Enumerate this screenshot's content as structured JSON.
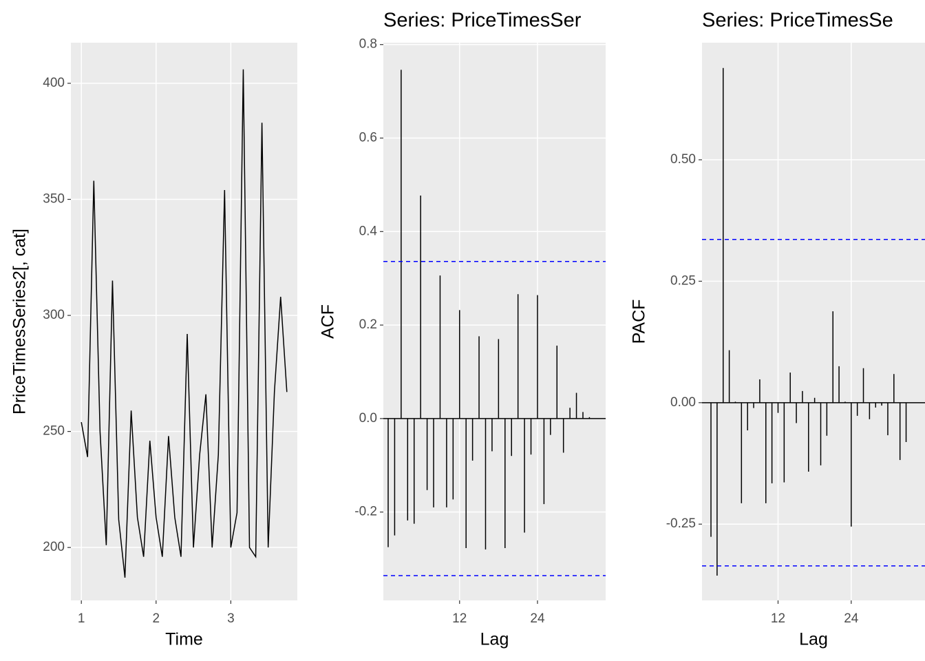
{
  "chart_data": [
    {
      "type": "line",
      "x_label": "Time",
      "y_label": "PriceTimesSeries2[, cat]",
      "x": [
        1,
        1.0833,
        1.1667,
        1.25,
        1.3333,
        1.4167,
        1.5,
        1.5833,
        1.6667,
        1.75,
        1.8333,
        1.9167,
        2,
        2.0833,
        2.1667,
        2.25,
        2.3333,
        2.4167,
        2.5,
        2.5833,
        2.6667,
        2.75,
        2.8333,
        2.9167,
        3,
        3.0833,
        3.1667,
        3.25,
        3.3333,
        3.4167,
        3.5,
        3.5833,
        3.6667,
        3.75
      ],
      "values": [
        254,
        239,
        358,
        250,
        201,
        315,
        212,
        187,
        259,
        213,
        196,
        246,
        213,
        196,
        248,
        213,
        196,
        292,
        200,
        240,
        266,
        200,
        240,
        354,
        200,
        215,
        406,
        200,
        196,
        383,
        200,
        267,
        308,
        267
      ],
      "color": "#000000",
      "xlim": [
        0.86,
        3.89
      ],
      "ylim": [
        177.2,
        417.5
      ],
      "xticks": [
        1,
        2,
        3
      ],
      "yticks": [
        200,
        250,
        300,
        350,
        400
      ],
      "grid": true
    },
    {
      "type": "bar",
      "title": "Series: PriceTimesSer",
      "x_label": "Lag",
      "y_label": "ACF",
      "x": [
        1,
        2,
        3,
        4,
        5,
        6,
        7,
        8,
        9,
        10,
        11,
        12,
        13,
        14,
        15,
        16,
        17,
        18,
        19,
        20,
        21,
        22,
        23,
        24,
        25,
        26,
        27,
        28,
        29,
        30,
        31,
        32
      ],
      "values": [
        -0.275,
        -0.25,
        0.746,
        -0.218,
        -0.225,
        0.477,
        -0.153,
        -0.19,
        0.306,
        -0.19,
        -0.173,
        0.232,
        -0.277,
        -0.09,
        0.176,
        -0.28,
        -0.07,
        0.17,
        -0.277,
        -0.08,
        0.266,
        -0.244,
        -0.077,
        0.264,
        -0.183,
        -0.035,
        0.156,
        -0.073,
        0.023,
        0.055,
        0.014,
        0.003
      ],
      "color": "#000000",
      "conf_limits": [
        0.336,
        -0.336
      ],
      "conf_color": "#0000ff",
      "xlim": [
        0.26,
        34.5
      ],
      "ylim": [
        -0.389,
        0.804
      ],
      "xticks": [
        12,
        24
      ],
      "yticks": [
        -0.2,
        {
          "value": 0,
          "label": "0.0"
        },
        0.2,
        0.4,
        0.6,
        0.8
      ],
      "grid": true
    },
    {
      "type": "bar",
      "title": "Series: PriceTimesSe",
      "x_label": "Lag",
      "y_label": "PACF",
      "x": [
        1,
        2,
        3,
        4,
        5,
        6,
        7,
        8,
        9,
        10,
        11,
        12,
        13,
        14,
        15,
        16,
        17,
        18,
        19,
        20,
        21,
        22,
        23,
        24,
        25,
        26,
        27,
        28,
        29,
        30,
        31,
        32,
        33
      ],
      "values": [
        -0.276,
        -0.356,
        0.689,
        0.108,
        0.002,
        -0.207,
        -0.057,
        -0.011,
        0.048,
        -0.207,
        -0.166,
        -0.021,
        -0.164,
        0.062,
        -0.042,
        0.024,
        -0.142,
        0.01,
        -0.129,
        -0.068,
        0.188,
        0.075,
        0.002,
        -0.255,
        -0.027,
        0.071,
        -0.034,
        -0.01,
        -0.006,
        -0.067,
        0.059,
        -0.118,
        -0.081
      ],
      "color": "#000000",
      "conf_limits": [
        0.336,
        -0.336
      ],
      "conf_color": "#0000ff",
      "xlim": [
        -0.47,
        36.1
      ],
      "ylim": [
        -0.407,
        0.741
      ],
      "xticks": [
        12,
        24
      ],
      "yticks": [
        -0.25,
        {
          "value": 0,
          "label": "0.00"
        },
        0.25,
        {
          "value": 0.5,
          "label": "0.50"
        }
      ],
      "grid": true
    }
  ]
}
